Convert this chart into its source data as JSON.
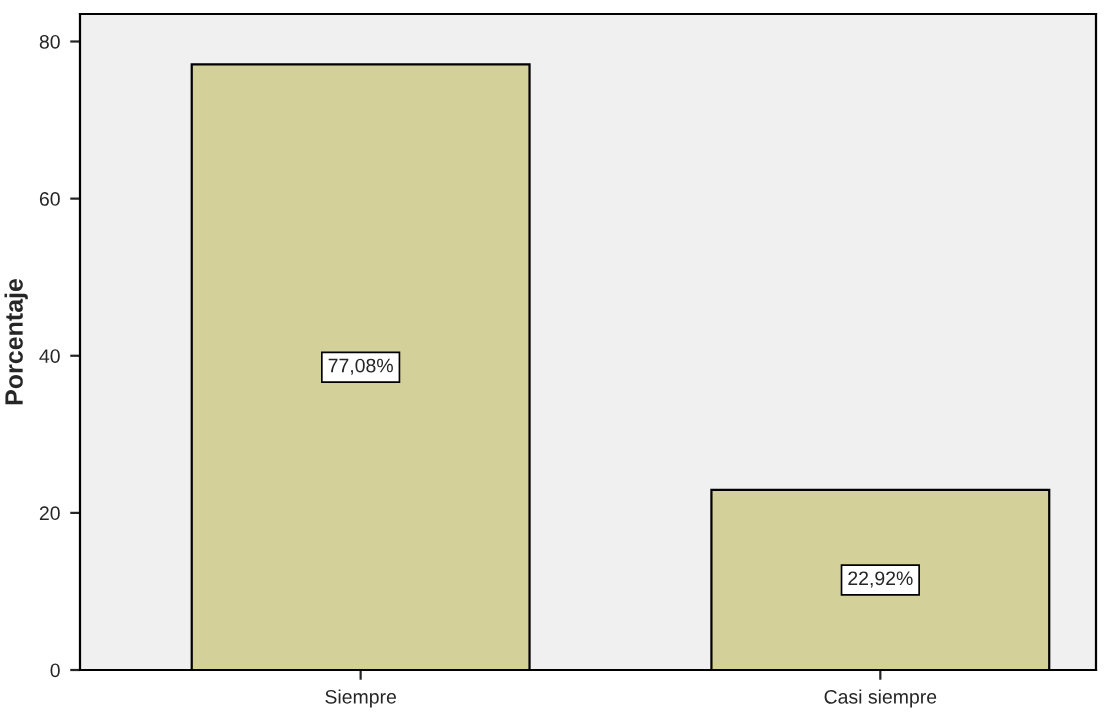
{
  "chart_data": {
    "type": "bar",
    "ylabel": "Porcentaje",
    "categories": [
      "Siempre",
      "Casi siempre"
    ],
    "values": [
      77.08,
      22.92
    ],
    "value_labels": [
      "77,08%",
      "22,92%"
    ],
    "color": "#d4d09a",
    "ylim": [
      0,
      83.5
    ],
    "yticks": [
      0,
      20,
      40,
      60,
      80
    ],
    "grid": false,
    "legend": false
  }
}
